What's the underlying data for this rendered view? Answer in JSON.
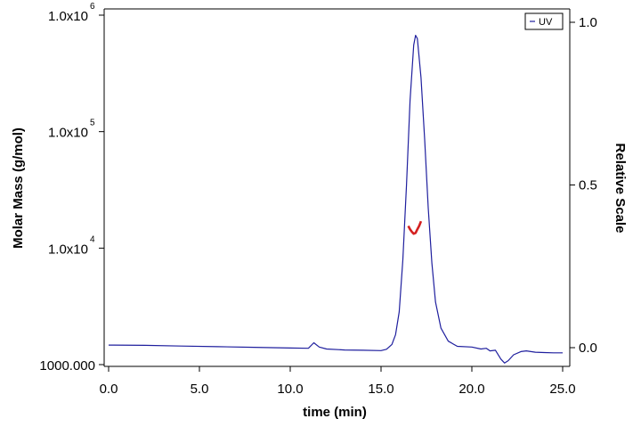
{
  "chart_data": {
    "type": "line",
    "title": "",
    "xlabel": "time (min)",
    "ylabel_left": "Molar Mass (g/mol)",
    "ylabel_right": "Relative Scale",
    "xlim": [
      0,
      25
    ],
    "ylim_left": [
      1000,
      1000000
    ],
    "ylim_left_scale": "log",
    "ylim_right": [
      0,
      1
    ],
    "x_ticks": [
      {
        "value": 0,
        "label": "0.0"
      },
      {
        "value": 5,
        "label": "5.0"
      },
      {
        "value": 10,
        "label": "10.0"
      },
      {
        "value": 15,
        "label": "15.0"
      },
      {
        "value": 20,
        "label": "20.0"
      },
      {
        "value": 25,
        "label": "25.0"
      }
    ],
    "y_left_ticks": [
      {
        "value": 1000000,
        "base": "1.0x10",
        "exp": "6"
      },
      {
        "value": 100000,
        "base": "1.0x10",
        "exp": "5"
      },
      {
        "value": 10000,
        "base": "1.0x10",
        "exp": "4"
      },
      {
        "value": 1000,
        "base": "1000.000",
        "exp": ""
      }
    ],
    "y_right_ticks": [
      {
        "value": 1.0,
        "label": "1.0"
      },
      {
        "value": 0.5,
        "label": "0.5"
      },
      {
        "value": 0.0,
        "label": "0.0"
      }
    ],
    "legend": {
      "position": "top-right",
      "entries": [
        "UV"
      ]
    },
    "grid": false,
    "series": [
      {
        "name": "UV",
        "axis": "right",
        "color": "#1f1f9e",
        "x": [
          0.0,
          2.0,
          4.0,
          6.0,
          8.0,
          10.0,
          11.0,
          11.3,
          11.6,
          12.0,
          13.0,
          14.0,
          15.0,
          15.3,
          15.6,
          15.8,
          16.0,
          16.2,
          16.4,
          16.6,
          16.8,
          16.9,
          17.0,
          17.2,
          17.4,
          17.6,
          17.8,
          18.0,
          18.3,
          18.7,
          19.2,
          20.0,
          20.5,
          20.8,
          21.0,
          21.3,
          21.6,
          21.8,
          22.0,
          22.3,
          22.7,
          23.0,
          23.5,
          24.0,
          24.5,
          25.0
        ],
        "y": [
          0.008,
          0.007,
          0.005,
          0.003,
          0.001,
          -0.001,
          -0.002,
          0.015,
          0.002,
          -0.004,
          -0.007,
          -0.008,
          -0.009,
          -0.005,
          0.01,
          0.04,
          0.11,
          0.27,
          0.5,
          0.76,
          0.93,
          0.96,
          0.95,
          0.83,
          0.64,
          0.43,
          0.26,
          0.14,
          0.06,
          0.02,
          0.004,
          0.002,
          -0.004,
          -0.002,
          -0.01,
          -0.008,
          -0.035,
          -0.047,
          -0.04,
          -0.022,
          -0.012,
          -0.01,
          -0.014,
          -0.015,
          -0.016,
          -0.016
        ]
      },
      {
        "name": "",
        "axis": "left",
        "color": "#d42020",
        "x": [
          16.5,
          16.6,
          16.7,
          16.8,
          16.9,
          17.0,
          17.1,
          17.2
        ],
        "y": [
          15500,
          14500,
          13800,
          13300,
          13500,
          14500,
          15500,
          17000
        ]
      }
    ]
  }
}
